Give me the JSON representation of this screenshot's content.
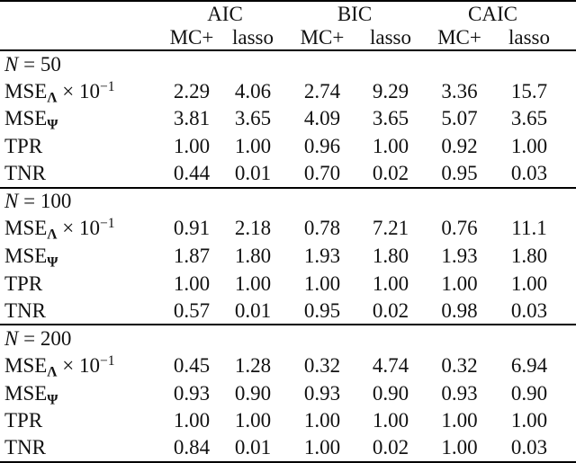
{
  "table": {
    "col_groups": [
      "AIC",
      "BIC",
      "CAIC"
    ],
    "sub_headers": [
      "MC+",
      "lasso",
      "MC+",
      "lasso",
      "MC+",
      "lasso"
    ],
    "sections": [
      {
        "heading": {
          "variable": "N",
          "rest": " = 50"
        },
        "rows": [
          {
            "label": {
              "base": "MSE",
              "subscript": "Λ",
              "rest": " × 10",
              "superscript": "−1"
            },
            "values": [
              "2.29",
              "4.06",
              "2.74",
              "9.29",
              "3.36",
              "15.7"
            ]
          },
          {
            "label": {
              "base": "MSE",
              "subscript": "Ψ"
            },
            "values": [
              "3.81",
              "3.65",
              "4.09",
              "3.65",
              "5.07",
              "3.65"
            ]
          },
          {
            "label": {
              "base": "TPR"
            },
            "values": [
              "1.00",
              "1.00",
              "0.96",
              "1.00",
              "0.92",
              "1.00"
            ]
          },
          {
            "label": {
              "base": "TNR"
            },
            "values": [
              "0.44",
              "0.01",
              "0.70",
              "0.02",
              "0.95",
              "0.03"
            ]
          }
        ]
      },
      {
        "heading": {
          "variable": "N",
          "rest": " = 100"
        },
        "rows": [
          {
            "label": {
              "base": "MSE",
              "subscript": "Λ",
              "rest": " × 10",
              "superscript": "−1"
            },
            "values": [
              "0.91",
              "2.18",
              "0.78",
              "7.21",
              "0.76",
              "11.1"
            ]
          },
          {
            "label": {
              "base": "MSE",
              "subscript": "Ψ"
            },
            "values": [
              "1.87",
              "1.80",
              "1.93",
              "1.80",
              "1.93",
              "1.80"
            ]
          },
          {
            "label": {
              "base": "TPR"
            },
            "values": [
              "1.00",
              "1.00",
              "1.00",
              "1.00",
              "1.00",
              "1.00"
            ]
          },
          {
            "label": {
              "base": "TNR"
            },
            "values": [
              "0.57",
              "0.01",
              "0.95",
              "0.02",
              "0.98",
              "0.03"
            ]
          }
        ]
      },
      {
        "heading": {
          "variable": "N",
          "rest": " = 200"
        },
        "rows": [
          {
            "label": {
              "base": "MSE",
              "subscript": "Λ",
              "rest": " × 10",
              "superscript": "−1"
            },
            "values": [
              "0.45",
              "1.28",
              "0.32",
              "4.74",
              "0.32",
              "6.94"
            ]
          },
          {
            "label": {
              "base": "MSE",
              "subscript": "Ψ"
            },
            "values": [
              "0.93",
              "0.90",
              "0.93",
              "0.90",
              "0.93",
              "0.90"
            ]
          },
          {
            "label": {
              "base": "TPR"
            },
            "values": [
              "1.00",
              "1.00",
              "1.00",
              "1.00",
              "1.00",
              "1.00"
            ]
          },
          {
            "label": {
              "base": "TNR"
            },
            "values": [
              "0.84",
              "0.01",
              "1.00",
              "0.02",
              "1.00",
              "0.03"
            ]
          }
        ]
      }
    ]
  }
}
